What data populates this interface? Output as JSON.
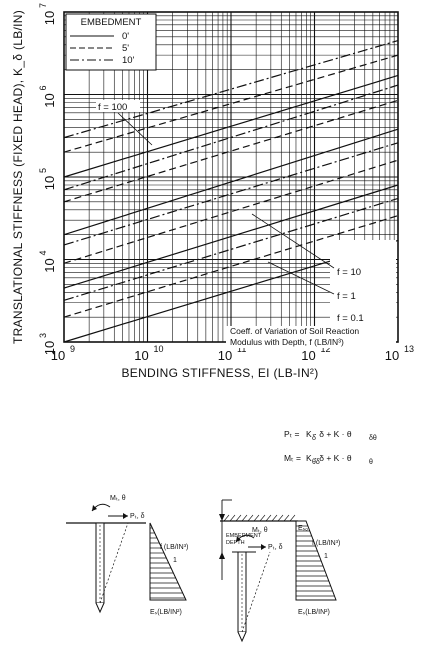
{
  "chart_data": {
    "type": "line",
    "x_scale": "log",
    "y_scale": "log",
    "xlim": [
      1000000000.0,
      10000000000000.0
    ],
    "ylim": [
      1000.0,
      10000000.0
    ],
    "xlabel": "BENDING STIFFNESS, EI (LB-IN²)",
    "ylabel": "TRANSLATIONAL STIFFNESS (FIXED HEAD), K_δ (LB/IN)",
    "x_ticks": [
      {
        "base": "10",
        "exp": "9"
      },
      {
        "base": "10",
        "exp": "10"
      },
      {
        "base": "10",
        "exp": "11"
      },
      {
        "base": "10",
        "exp": "12"
      },
      {
        "base": "10",
        "exp": "13"
      }
    ],
    "y_ticks": [
      {
        "base": "10",
        "exp": "3"
      },
      {
        "base": "10",
        "exp": "4"
      },
      {
        "base": "10",
        "exp": "5"
      },
      {
        "base": "10",
        "exp": "6"
      },
      {
        "base": "10",
        "exp": "7"
      }
    ],
    "grid": true,
    "legend": {
      "title": "EMBEDMENT",
      "placement": "top-left",
      "entries": [
        {
          "label": "0'",
          "style": "solid"
        },
        {
          "label": "5'",
          "style": "dashed"
        },
        {
          "label": "10'",
          "style": "dashdot"
        }
      ]
    },
    "f_labels": {
      "f100": "f = 100",
      "f10": "f = 10",
      "f1": "f = 1",
      "f01": "f = 0.1"
    },
    "note": [
      "Coeff. of Variation of Soil Reaction",
      "Modulus with Depth, f (LB/IN³)"
    ],
    "series": [
      {
        "f": 100,
        "embedment": "0'",
        "style": "solid",
        "x": [
          1000000000.0,
          10000000000000.0
        ],
        "y": [
          100000,
          1700000
        ]
      },
      {
        "f": 100,
        "embedment": "5'",
        "style": "dashed",
        "x": [
          1000000000.0,
          10000000000000.0
        ],
        "y": [
          200000,
          3000000
        ]
      },
      {
        "f": 100,
        "embedment": "10'",
        "style": "dashdot",
        "x": [
          1000000000.0,
          10000000000000.0
        ],
        "y": [
          300000,
          4500000
        ]
      },
      {
        "f": 10,
        "embedment": "0'",
        "style": "solid",
        "x": [
          1000000000.0,
          10000000000000.0
        ],
        "y": [
          20000,
          380000
        ]
      },
      {
        "f": 10,
        "embedment": "5'",
        "style": "dashed",
        "x": [
          1000000000.0,
          10000000000000.0
        ],
        "y": [
          50000,
          850000
        ]
      },
      {
        "f": 10,
        "embedment": "10'",
        "style": "dashdot",
        "x": [
          1000000000.0,
          10000000000000.0
        ],
        "y": [
          70000,
          1300000
        ]
      },
      {
        "f": 1,
        "embedment": "0'",
        "style": "solid",
        "x": [
          1000000000.0,
          10000000000000.0
        ],
        "y": [
          4500,
          80000
        ]
      },
      {
        "f": 1,
        "embedment": "5'",
        "style": "dashed",
        "x": [
          1000000000.0,
          10000000000000.0
        ],
        "y": [
          9000,
          160000
        ]
      },
      {
        "f": 1,
        "embedment": "10'",
        "style": "dashdot",
        "x": [
          1000000000.0,
          10000000000000.0
        ],
        "y": [
          15000,
          260000
        ]
      },
      {
        "f": 0.1,
        "embedment": "0'",
        "style": "solid",
        "x": [
          1000000000.0,
          10000000000000.0
        ],
        "y": [
          1000,
          17000
        ]
      },
      {
        "f": 0.1,
        "embedment": "5'",
        "style": "dashed",
        "x": [
          1000000000.0,
          10000000000000.0
        ],
        "y": [
          2000,
          34000
        ]
      },
      {
        "f": 0.1,
        "embedment": "10'",
        "style": "dashdot",
        "x": [
          1000000000.0,
          10000000000000.0
        ],
        "y": [
          3200,
          55000
        ]
      }
    ]
  },
  "diagram": {
    "eq_p_left": "Pₜ =",
    "eq_p_terms": [
      "K",
      "δ",
      "·",
      "δ",
      "+",
      "K",
      "δθ",
      "·",
      "θ"
    ],
    "eq_p_text": "K  · δ  +  K   · θ",
    "eq_m_left": "Mₜ =",
    "eq_m_text": "K  · δ  +  K  · θ",
    "p_sub1": "δ",
    "p_sub2": "δθ",
    "m_sub1": "θδ",
    "m_sub2": "θ",
    "left_moment": "Mₜ, θ",
    "left_force": "Pₜ, δ",
    "left_f_label": "f (LB/IN³)",
    "left_one": "1",
    "left_es": "Eₛ(LB/IN²)",
    "right_moment": "Mₜ, θ",
    "right_force": "Pₜ, δ",
    "right_embed": [
      "EMBEDMENT",
      "DEPTH"
    ],
    "right_es_top": "Eₛₒ",
    "right_f_label": "f (LB/IN³)",
    "right_one": "1",
    "right_es": "Eₛ(LB/IN²)"
  }
}
